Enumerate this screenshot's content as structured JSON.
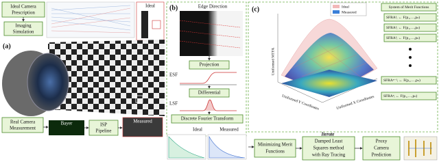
{
  "panel_a": {
    "label": "(a)",
    "prescription": [
      "Ideal Camera",
      "Prescription"
    ],
    "simulation": [
      "Imaging",
      "Simulation"
    ],
    "ideal": "Ideal",
    "measurement": [
      "Real Camera",
      "Measurement"
    ],
    "bayer": "Bayer",
    "isp": [
      "ISP",
      "Pipeline"
    ],
    "measured": "Measured"
  },
  "panel_b": {
    "label": "(b)",
    "edge_direction": "Edge Direction",
    "projection": "Projection",
    "esf": "ESF",
    "differential": "Differential",
    "lsf": "LSF",
    "dft": "Discrete Fourier Transform",
    "ideal": "Ideal",
    "measured": "Measured"
  },
  "panel_c": {
    "label": "(c)",
    "legend": [
      "Ideal",
      "Measured"
    ],
    "z_axis": "Uniformed MTFA",
    "y_axis": "Uniformed Y Coordinates",
    "x_axis": "Uniformed X Coordinates",
    "merit_title": "System of Merit Functions",
    "merit_functions": [
      "SFRA¹ᵢ ← F(p₁,…,pₙ)",
      "SFRA²ᵢ ← F(p₁,…,pₙ)",
      "SFRA³ᵢ ← F(p₁,…,pₙ)",
      "SFRAⁿ⁻¹ᵢ ← F(p₁,…,pₙ)",
      "SFRAⁿᵢ ← F(p₁,…,pₙ)"
    ]
  },
  "pipeline": {
    "iterate": "Iterate",
    "minimize": [
      "Minimizing Merit",
      "Functions"
    ],
    "dls": [
      "Damped Least",
      "Squares method",
      "with Ray Tracing"
    ],
    "proxy": [
      "Proxy",
      "Camera",
      "Prediction"
    ]
  }
}
